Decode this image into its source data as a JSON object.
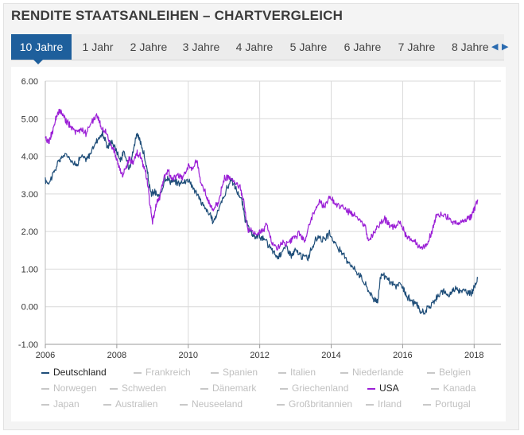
{
  "header": {
    "title": "RENDITE STAATSANLEIHEN – CHARTVERGLEICH"
  },
  "tabs": [
    {
      "label": "10 Jahre",
      "active": true
    },
    {
      "label": "1 Jahr",
      "active": false
    },
    {
      "label": "2 Jahre",
      "active": false
    },
    {
      "label": "3 Jahre",
      "active": false
    },
    {
      "label": "4 Jahre",
      "active": false
    },
    {
      "label": "5 Jahre",
      "active": false
    },
    {
      "label": "6 Jahre",
      "active": false
    },
    {
      "label": "7 Jahre",
      "active": false
    },
    {
      "label": "8 Jahre",
      "active": false
    }
  ],
  "nav": {
    "prev": "◀",
    "next": "▶"
  },
  "colors": {
    "deutschland": "#1f4e79",
    "usa": "#9b1fd6",
    "inactive": "#c8c8c8",
    "tab_active": "#1e5f9c"
  },
  "chart_data": {
    "type": "line",
    "title": "",
    "xlabel": "",
    "ylabel": "",
    "xlim": [
      2006.0,
      2018.75
    ],
    "ylim": [
      -1.0,
      6.0
    ],
    "y_ticks": [
      "6.00",
      "5.00",
      "4.00",
      "3.00",
      "2.00",
      "1.00",
      "0.00",
      "-1.00"
    ],
    "y_tick_values": [
      6,
      5,
      4,
      3,
      2,
      1,
      0,
      -1
    ],
    "x_ticks": [
      "2006",
      "2008",
      "2010",
      "2012",
      "2014",
      "2016",
      "2018"
    ],
    "x_tick_values": [
      2006,
      2008,
      2010,
      2012,
      2014,
      2016,
      2018
    ],
    "grid": true,
    "legend_position": "bottom",
    "series": [
      {
        "name": "Deutschland",
        "active": true,
        "key": "deutschland",
        "points": [
          [
            2006.0,
            3.35
          ],
          [
            2006.1,
            3.3
          ],
          [
            2006.25,
            3.6
          ],
          [
            2006.4,
            3.9
          ],
          [
            2006.55,
            4.05
          ],
          [
            2006.7,
            3.95
          ],
          [
            2006.85,
            3.75
          ],
          [
            2007.0,
            4.0
          ],
          [
            2007.15,
            3.9
          ],
          [
            2007.3,
            4.15
          ],
          [
            2007.45,
            4.45
          ],
          [
            2007.6,
            4.6
          ],
          [
            2007.75,
            4.25
          ],
          [
            2007.85,
            4.4
          ],
          [
            2008.0,
            4.15
          ],
          [
            2008.1,
            3.9
          ],
          [
            2008.2,
            4.1
          ],
          [
            2008.35,
            3.7
          ],
          [
            2008.45,
            4.1
          ],
          [
            2008.55,
            4.6
          ],
          [
            2008.65,
            4.4
          ],
          [
            2008.75,
            4.1
          ],
          [
            2008.85,
            3.6
          ],
          [
            2008.95,
            3.0
          ],
          [
            2009.05,
            3.05
          ],
          [
            2009.2,
            2.9
          ],
          [
            2009.35,
            3.45
          ],
          [
            2009.5,
            3.35
          ],
          [
            2009.65,
            3.3
          ],
          [
            2009.85,
            3.3
          ],
          [
            2010.0,
            3.4
          ],
          [
            2010.15,
            3.15
          ],
          [
            2010.3,
            2.9
          ],
          [
            2010.45,
            2.65
          ],
          [
            2010.6,
            2.45
          ],
          [
            2010.7,
            2.25
          ],
          [
            2010.85,
            2.6
          ],
          [
            2011.0,
            2.95
          ],
          [
            2011.2,
            3.4
          ],
          [
            2011.35,
            3.1
          ],
          [
            2011.5,
            2.8
          ],
          [
            2011.6,
            2.3
          ],
          [
            2011.75,
            1.95
          ],
          [
            2011.85,
            1.85
          ],
          [
            2012.0,
            1.9
          ],
          [
            2012.15,
            1.75
          ],
          [
            2012.35,
            1.5
          ],
          [
            2012.5,
            1.3
          ],
          [
            2012.6,
            1.45
          ],
          [
            2012.75,
            1.6
          ],
          [
            2012.9,
            1.35
          ],
          [
            2013.0,
            1.5
          ],
          [
            2013.15,
            1.35
          ],
          [
            2013.35,
            1.3
          ],
          [
            2013.5,
            1.65
          ],
          [
            2013.65,
            1.9
          ],
          [
            2013.8,
            1.75
          ],
          [
            2013.95,
            1.95
          ],
          [
            2014.1,
            1.7
          ],
          [
            2014.3,
            1.4
          ],
          [
            2014.5,
            1.2
          ],
          [
            2014.65,
            1.0
          ],
          [
            2014.8,
            0.85
          ],
          [
            2014.95,
            0.6
          ],
          [
            2015.1,
            0.35
          ],
          [
            2015.2,
            0.2
          ],
          [
            2015.3,
            0.15
          ],
          [
            2015.4,
            0.9
          ],
          [
            2015.5,
            0.8
          ],
          [
            2015.65,
            0.65
          ],
          [
            2015.8,
            0.55
          ],
          [
            2015.95,
            0.6
          ],
          [
            2016.1,
            0.3
          ],
          [
            2016.25,
            0.15
          ],
          [
            2016.4,
            0.05
          ],
          [
            2016.5,
            -0.15
          ],
          [
            2016.65,
            -0.1
          ],
          [
            2016.8,
            0.05
          ],
          [
            2016.9,
            0.2
          ],
          [
            2017.0,
            0.3
          ],
          [
            2017.15,
            0.4
          ],
          [
            2017.3,
            0.3
          ],
          [
            2017.45,
            0.5
          ],
          [
            2017.6,
            0.45
          ],
          [
            2017.75,
            0.4
          ],
          [
            2017.9,
            0.35
          ],
          [
            2018.0,
            0.5
          ],
          [
            2018.1,
            0.75
          ]
        ]
      },
      {
        "name": "Frankreich",
        "active": false
      },
      {
        "name": "Spanien",
        "active": false
      },
      {
        "name": "Italien",
        "active": false
      },
      {
        "name": "Niederlande",
        "active": false
      },
      {
        "name": "Belgien",
        "active": false
      },
      {
        "name": "Norwegen",
        "active": false
      },
      {
        "name": "Schweden",
        "active": false
      },
      {
        "name": "Dänemark",
        "active": false
      },
      {
        "name": "Griechenland",
        "active": false
      },
      {
        "name": "USA",
        "active": true,
        "key": "usa",
        "points": [
          [
            2006.0,
            4.45
          ],
          [
            2006.1,
            4.4
          ],
          [
            2006.2,
            4.65
          ],
          [
            2006.3,
            5.0
          ],
          [
            2006.4,
            5.2
          ],
          [
            2006.5,
            5.1
          ],
          [
            2006.6,
            4.9
          ],
          [
            2006.75,
            4.75
          ],
          [
            2006.9,
            4.6
          ],
          [
            2007.0,
            4.75
          ],
          [
            2007.15,
            4.6
          ],
          [
            2007.3,
            4.9
          ],
          [
            2007.45,
            5.1
          ],
          [
            2007.55,
            4.8
          ],
          [
            2007.7,
            4.6
          ],
          [
            2007.85,
            4.3
          ],
          [
            2007.95,
            4.1
          ],
          [
            2008.05,
            3.75
          ],
          [
            2008.15,
            3.5
          ],
          [
            2008.25,
            3.65
          ],
          [
            2008.35,
            3.95
          ],
          [
            2008.45,
            3.85
          ],
          [
            2008.55,
            4.1
          ],
          [
            2008.65,
            4.0
          ],
          [
            2008.75,
            3.75
          ],
          [
            2008.85,
            3.4
          ],
          [
            2008.92,
            2.8
          ],
          [
            2009.0,
            2.25
          ],
          [
            2009.1,
            2.7
          ],
          [
            2009.2,
            2.9
          ],
          [
            2009.3,
            3.4
          ],
          [
            2009.45,
            3.6
          ],
          [
            2009.55,
            3.4
          ],
          [
            2009.7,
            3.5
          ],
          [
            2009.85,
            3.45
          ],
          [
            2010.0,
            3.75
          ],
          [
            2010.1,
            3.7
          ],
          [
            2010.25,
            3.85
          ],
          [
            2010.35,
            3.3
          ],
          [
            2010.5,
            3.0
          ],
          [
            2010.6,
            2.7
          ],
          [
            2010.7,
            2.55
          ],
          [
            2010.85,
            2.8
          ],
          [
            2011.0,
            3.4
          ],
          [
            2011.15,
            3.45
          ],
          [
            2011.3,
            3.35
          ],
          [
            2011.45,
            3.2
          ],
          [
            2011.55,
            2.8
          ],
          [
            2011.65,
            2.1
          ],
          [
            2011.8,
            2.0
          ],
          [
            2011.95,
            1.95
          ],
          [
            2012.05,
            2.0
          ],
          [
            2012.2,
            2.2
          ],
          [
            2012.35,
            1.65
          ],
          [
            2012.5,
            1.55
          ],
          [
            2012.65,
            1.7
          ],
          [
            2012.8,
            1.65
          ],
          [
            2012.95,
            1.8
          ],
          [
            2013.1,
            1.95
          ],
          [
            2013.25,
            1.75
          ],
          [
            2013.4,
            2.2
          ],
          [
            2013.55,
            2.6
          ],
          [
            2013.7,
            2.8
          ],
          [
            2013.8,
            2.65
          ],
          [
            2013.95,
            2.95
          ],
          [
            2014.1,
            2.75
          ],
          [
            2014.3,
            2.65
          ],
          [
            2014.5,
            2.5
          ],
          [
            2014.65,
            2.45
          ],
          [
            2014.8,
            2.3
          ],
          [
            2014.95,
            2.15
          ],
          [
            2015.05,
            1.75
          ],
          [
            2015.2,
            2.0
          ],
          [
            2015.35,
            2.2
          ],
          [
            2015.5,
            2.35
          ],
          [
            2015.65,
            2.15
          ],
          [
            2015.8,
            2.1
          ],
          [
            2015.95,
            2.25
          ],
          [
            2016.1,
            1.85
          ],
          [
            2016.25,
            1.8
          ],
          [
            2016.4,
            1.65
          ],
          [
            2016.55,
            1.55
          ],
          [
            2016.7,
            1.7
          ],
          [
            2016.85,
            2.1
          ],
          [
            2016.95,
            2.45
          ],
          [
            2017.1,
            2.45
          ],
          [
            2017.3,
            2.35
          ],
          [
            2017.45,
            2.2
          ],
          [
            2017.6,
            2.25
          ],
          [
            2017.75,
            2.3
          ],
          [
            2017.9,
            2.4
          ],
          [
            2018.0,
            2.6
          ],
          [
            2018.1,
            2.85
          ]
        ]
      },
      {
        "name": "Kanada",
        "active": false
      },
      {
        "name": "Japan",
        "active": false
      },
      {
        "name": "Australien",
        "active": false
      },
      {
        "name": "Neuseeland",
        "active": false
      },
      {
        "name": "Großbritannien",
        "active": false
      },
      {
        "name": "Irland",
        "active": false
      },
      {
        "name": "Portugal",
        "active": false
      }
    ]
  }
}
